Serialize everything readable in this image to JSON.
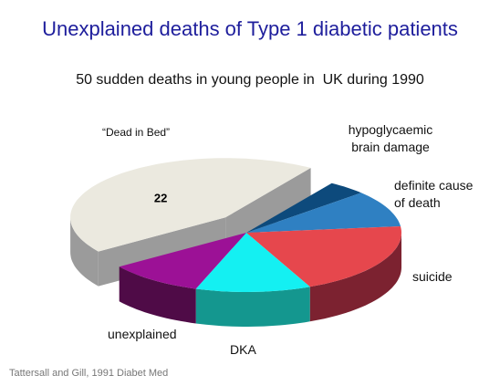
{
  "chart_data": {
    "type": "pie3d",
    "title": "Unexplained deaths of Type 1 diabetic patients",
    "subtitle": "50 sudden deaths in young people in  UK during 1990",
    "source": "Tattersall and Gill, 1991 Diabet Med",
    "categories": [
      "“Dead in Bed”",
      "hypoglycaemic brain damage",
      "definite cause of death",
      "suicide",
      "DKA",
      "unexplained"
    ],
    "values": [
      22,
      2,
      5,
      10,
      6,
      5
    ],
    "value_labels": [
      "22",
      null,
      null,
      null,
      null,
      null
    ],
    "colors": [
      "#ebe9df",
      "#0d4a7c",
      "#2f80c2",
      "#e6474d",
      "#14f0f2",
      "#9c1196"
    ],
    "side_colors": [
      "#9b9b9b",
      "#082f50",
      "#1f5a8a",
      "#7c2230",
      "#14978f",
      "#4f0b47"
    ],
    "exploded": [
      0
    ]
  }
}
